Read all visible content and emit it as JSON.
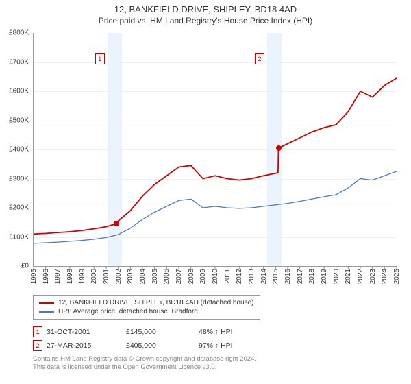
{
  "title": {
    "main": "12, BANKFIELD DRIVE, SHIPLEY, BD18 4AD",
    "sub": "Price paid vs. HM Land Registry's House Price Index (HPI)"
  },
  "chart": {
    "type": "line",
    "background_color": "#ffffff",
    "grid_color": "#f0f0f0",
    "axis_color": "#999999",
    "shade_color": "#dbe9f9",
    "xlim": [
      1995,
      2025
    ],
    "ylim": [
      0,
      800
    ],
    "ytick_step": 100,
    "ytick_prefix": "£",
    "ytick_suffix": "K",
    "xtick_step": 1,
    "xtick_rotate": -90,
    "shaded_ranges": [
      {
        "from": 2001.1,
        "to": 2002.3
      },
      {
        "from": 2014.3,
        "to": 2015.5
      }
    ],
    "markers": [
      {
        "label": "1",
        "x": 2001.1,
        "y": 730,
        "color": "#d00000"
      },
      {
        "label": "2",
        "x": 2014.3,
        "y": 730,
        "color": "#d00000"
      }
    ],
    "sale_points": [
      {
        "x": 2001.83,
        "y": 145,
        "color": "#d00000"
      },
      {
        "x": 2015.24,
        "y": 405,
        "color": "#d00000"
      }
    ],
    "series": [
      {
        "name": "12, BANKFIELD DRIVE, SHIPLEY, BD18 4AD (detached house)",
        "color": "#d00000",
        "line_width": 1.8,
        "x": [
          1995,
          1996,
          1997,
          1998,
          1999,
          2000,
          2001,
          2001.83,
          2002,
          2003,
          2004,
          2005,
          2006,
          2007,
          2008,
          2009,
          2010,
          2011,
          2012,
          2013,
          2014,
          2015.2,
          2015.24,
          2016,
          2017,
          2018,
          2019,
          2020,
          2021,
          2022,
          2023,
          2024,
          2025
        ],
        "y": [
          110,
          112,
          115,
          118,
          122,
          128,
          135,
          145,
          155,
          190,
          240,
          280,
          310,
          340,
          345,
          300,
          310,
          300,
          295,
          300,
          310,
          320,
          405,
          420,
          440,
          460,
          475,
          485,
          530,
          600,
          580,
          620,
          645
        ]
      },
      {
        "name": "HPI: Average price, detached house, Bradford",
        "color": "#4a78c4",
        "line_width": 1.3,
        "x": [
          1995,
          1996,
          1997,
          1998,
          1999,
          2000,
          2001,
          2002,
          2003,
          2004,
          2005,
          2006,
          2007,
          2008,
          2009,
          2010,
          2011,
          2012,
          2013,
          2014,
          2015,
          2016,
          2017,
          2018,
          2019,
          2020,
          2021,
          2022,
          2023,
          2024,
          2025
        ],
        "y": [
          78,
          80,
          82,
          85,
          88,
          92,
          98,
          108,
          130,
          160,
          185,
          205,
          225,
          230,
          200,
          205,
          200,
          198,
          200,
          205,
          210,
          215,
          222,
          230,
          238,
          245,
          268,
          300,
          295,
          310,
          325
        ]
      }
    ]
  },
  "legend": {
    "items": [
      {
        "color": "#d00000",
        "label": "12, BANKFIELD DRIVE, SHIPLEY, BD18 4AD (detached house)"
      },
      {
        "color": "#4a78c4",
        "label": "HPI: Average price, detached house, Bradford"
      }
    ]
  },
  "sales": [
    {
      "num": "1",
      "date": "31-OCT-2001",
      "price": "£145,000",
      "pct": "48% ↑ HPI"
    },
    {
      "num": "2",
      "date": "27-MAR-2015",
      "price": "£405,000",
      "pct": "97% ↑ HPI"
    }
  ],
  "footer": {
    "line1": "Contains HM Land Registry data © Crown copyright and database right 2024.",
    "line2": "This data is licensed under the Open Government Licence v3.0."
  }
}
